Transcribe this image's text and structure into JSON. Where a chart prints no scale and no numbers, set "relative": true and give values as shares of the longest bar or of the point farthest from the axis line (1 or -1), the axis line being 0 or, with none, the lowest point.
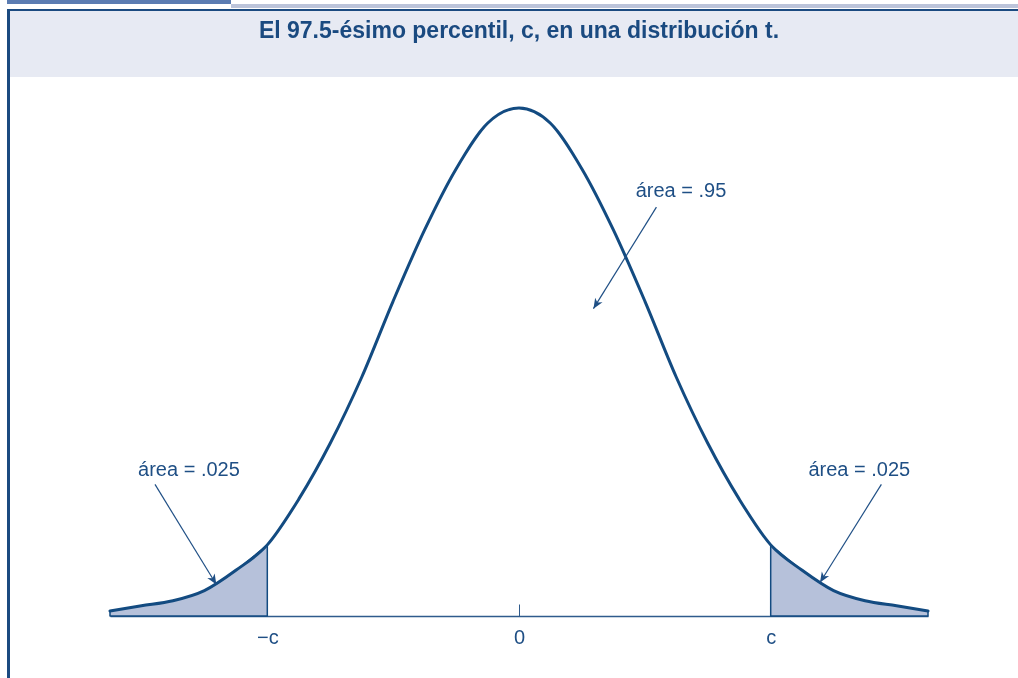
{
  "chart_data": {
    "type": "line",
    "title": "El 97.5-ésimo percentil, c, en una distribución t.",
    "categories": [
      null,
      null,
      null,
      null,
      null,
      "−c",
      null,
      null,
      null,
      null,
      null,
      null,
      null,
      "0",
      null,
      null,
      null,
      null,
      null,
      null,
      null,
      "c",
      null,
      null,
      null,
      null,
      null
    ],
    "relative": true,
    "series": [
      {
        "color": "#134b81",
        "values": [
          0.01,
          0.02,
          0.03,
          0.05,
          0.09,
          0.14,
          0.23,
          0.34,
          0.47,
          0.62,
          0.76,
          0.88,
          0.97,
          1,
          0.97,
          0.88,
          0.76,
          0.62,
          0.47,
          0.34,
          0.23,
          0.14,
          0.09,
          0.05,
          0.03,
          0.02,
          0.01
        ]
      },
      {
        "type": "area",
        "color": "#b6c1da",
        "values": [
          0.01,
          0.02,
          0.03,
          0.05,
          0.09,
          0.14,
          null,
          null,
          null,
          null,
          null,
          null,
          null,
          null,
          null,
          null,
          null,
          null,
          null,
          null,
          null,
          null,
          null,
          null,
          null,
          null,
          null
        ]
      },
      {
        "type": "area",
        "color": "#b6c1da",
        "values": [
          null,
          null,
          null,
          null,
          null,
          null,
          null,
          null,
          null,
          null,
          null,
          null,
          null,
          null,
          null,
          null,
          null,
          null,
          null,
          null,
          null,
          0.14,
          0.09,
          0.05,
          0.03,
          0.02,
          0.01
        ]
      }
    ],
    "annotations": [
      "área = .95",
      "área = .025",
      "área = .025"
    ]
  }
}
